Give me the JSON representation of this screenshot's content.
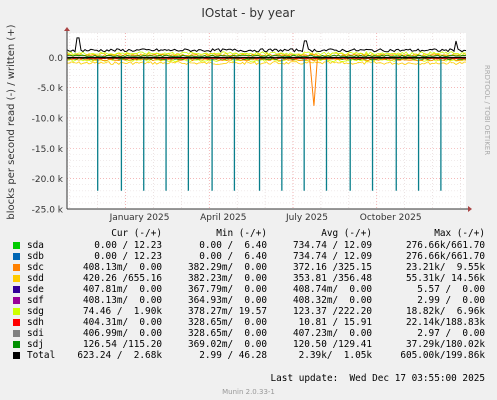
{
  "chart_data": {
    "type": "line",
    "title": "IOstat - by year",
    "ylabel": "blocks per second read (-) / written (+)",
    "watermark": "RRDTOOL / TOBI OETIKER",
    "y_ticks": [
      {
        "value": 0,
        "label": "0.0"
      },
      {
        "value": -5000,
        "label": "-5.0 k"
      },
      {
        "value": -10000,
        "label": "-10.0 k"
      },
      {
        "value": -15000,
        "label": "-15.0 k"
      },
      {
        "value": -20000,
        "label": "-20.0 k"
      },
      {
        "value": -25000,
        "label": "-25.0 k"
      }
    ],
    "ylim": [
      -25000,
      4000
    ],
    "x_ticks": [
      "January 2025",
      "April 2025",
      "July 2025",
      "October 2025"
    ],
    "x_tick_months": [
      1,
      4,
      7,
      10
    ],
    "xlim_months": [
      -1.1,
      13.2
    ],
    "read_spikes": {
      "months": [
        0.0,
        0.85,
        1.65,
        2.45,
        3.25,
        4.1,
        4.9,
        5.8,
        6.6,
        7.4,
        8.2,
        9.05,
        9.85,
        10.7,
        11.5,
        12.3
      ],
      "value": -22000
    },
    "sdc_dip": {
      "month": 7.75,
      "value": -8000
    },
    "total_top_peaks": [
      {
        "month": -0.7,
        "value": 3200
      },
      {
        "month": 7.45,
        "value": 2700
      },
      {
        "month": 12.85,
        "value": 2680
      }
    ],
    "series": [
      {
        "name": "sda",
        "color": "#00cc00",
        "cur": "0.00 / 12.23",
        "min": "0.00 /  6.40",
        "avg": "734.74 / 12.09",
        "max": "276.66k/661.70"
      },
      {
        "name": "sdb",
        "color": "#0066b3",
        "cur": "0.00 / 12.23",
        "min": "0.00 /  6.40",
        "avg": "734.74 / 12.09",
        "max": "276.66k/661.70"
      },
      {
        "name": "sdc",
        "color": "#ff8000",
        "cur": "408.13m/  0.00",
        "min": "382.29m/  0.00",
        "avg": "372.16 /325.15",
        "max": "23.21k/  9.55k"
      },
      {
        "name": "sdd",
        "color": "#ffcc00",
        "cur": "420.26 /655.16",
        "min": "382.23m/  0.00",
        "avg": "353.81 /356.48",
        "max": "55.31k/ 14.56k"
      },
      {
        "name": "sde",
        "color": "#330099",
        "cur": "407.81m/  0.00",
        "min": "367.79m/  0.00",
        "avg": "408.74m/  0.00",
        "max": "5.57 /  0.00"
      },
      {
        "name": "sdf",
        "color": "#990099",
        "cur": "408.13m/  0.00",
        "min": "364.93m/  0.00",
        "avg": "408.32m/  0.00",
        "max": "2.99 /  0.00"
      },
      {
        "name": "sdg",
        "color": "#ccff00",
        "cur": "74.46 /  1.90k",
        "min": "378.27m/ 19.57",
        "avg": "123.37 /222.20",
        "max": "18.82k/  6.96k"
      },
      {
        "name": "sdh",
        "color": "#ff0000",
        "cur": "404.31m/  0.00",
        "min": "328.65m/  0.00",
        "avg": "10.81 / 15.91",
        "max": "22.14k/188.83k"
      },
      {
        "name": "sdi",
        "color": "#808080",
        "cur": "406.99m/  0.00",
        "min": "328.65m/  0.00",
        "avg": "407.23m/  0.00",
        "max": "2.97 /  0.00"
      },
      {
        "name": "sdj",
        "color": "#008f00",
        "cur": "126.54 /115.20",
        "min": "369.02m/  0.00",
        "avg": "120.50 /129.41",
        "max": "37.29k/180.02k"
      },
      {
        "name": "Total",
        "color": "#000000",
        "cur": "623.24 /  2.68k",
        "min": "2.99 / 46.28",
        "avg": "2.39k/  1.05k",
        "max": "605.00k/199.86k"
      }
    ]
  },
  "legend_headers": {
    "cur": "Cur (-/+)",
    "min": "Min (-/+)",
    "avg": "Avg (-/+)",
    "max": "Max (-/+)"
  },
  "footer": {
    "last_update": "Last update:  Wed Dec 17 03:55:00 2025",
    "version": "Munin 2.0.33-1"
  }
}
